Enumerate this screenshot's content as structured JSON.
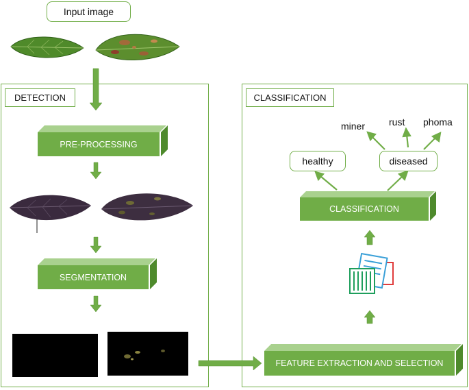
{
  "input": {
    "label": "Input image"
  },
  "detection": {
    "title": "DETECTION",
    "steps": {
      "preprocessing": "PRE-PROCESSING",
      "segmentation": "SEGMENTATION"
    }
  },
  "classification_panel": {
    "title": "CLASSIFICATION",
    "classifier": "CLASSIFICATION",
    "feature": "FEATURE EXTRACTION AND SELECTION",
    "classes": {
      "healthy": "healthy",
      "diseased": "diseased"
    },
    "diseases": {
      "miner": "miner",
      "rust": "rust",
      "phoma": "phoma"
    }
  },
  "colors": {
    "accent": "#70AD47",
    "accent_light": "#A9D18E",
    "accent_dark": "#4E8A2C"
  }
}
